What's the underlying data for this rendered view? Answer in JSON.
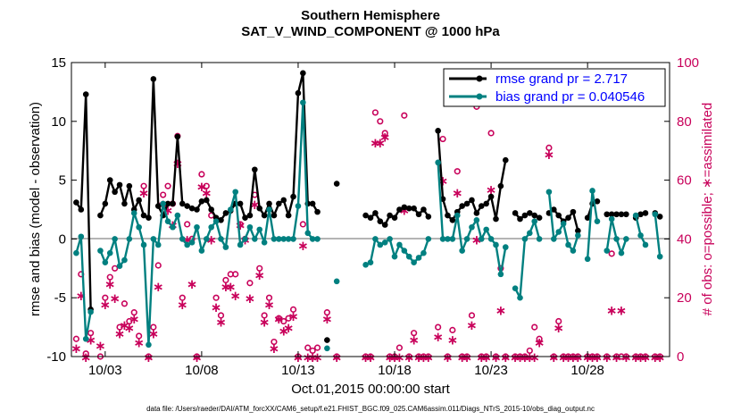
{
  "chart_data": {
    "type": "line",
    "title": "Southern Hemisphere",
    "subtitle": "SAT_V_WIND_COMPONENT @ 1000 hPa",
    "xlabel": "Oct.01,2015 00:00:00 start",
    "ylabel": "rmse and bias (model - observation)",
    "y2label": "# of obs: o=possible; ∗=assimilated",
    "x_tick_labels": [
      "10/03",
      "10/08",
      "10/13",
      "10/18",
      "10/23",
      "10/28"
    ],
    "x_tick_values": [
      3,
      8,
      13,
      18,
      23,
      28
    ],
    "xlim": [
      1.25,
      32.25
    ],
    "ylim": [
      -10,
      15
    ],
    "y_ticks": [
      -10,
      -5,
      0,
      5,
      10,
      15
    ],
    "y2lim": [
      0,
      100
    ],
    "y2_ticks": [
      0,
      20,
      40,
      60,
      80,
      100
    ],
    "grid": false,
    "legend_position": "top-right",
    "colors": {
      "rmse": "#000000",
      "bias": "#008080",
      "counts": "#c8005a",
      "zero_line": "#b4b4b4",
      "legend_text": "#0000ff"
    },
    "series": [
      {
        "name": "rmse grand pr = 2.717",
        "style": "black line with dots",
        "x": [
          1.5,
          1.75,
          2.0,
          2.25,
          2.75,
          3.0,
          3.25,
          3.5,
          3.75,
          4.0,
          4.25,
          4.5,
          4.75,
          5.0,
          5.25,
          5.5,
          5.75,
          6.0,
          6.25,
          6.5,
          6.75,
          7.0,
          7.25,
          7.5,
          7.75,
          8.0,
          8.25,
          8.5,
          8.75,
          9.0,
          9.25,
          9.5,
          9.75,
          10.0,
          10.25,
          10.5,
          10.75,
          11.0,
          11.25,
          11.5,
          11.75,
          12.0,
          12.25,
          12.5,
          12.75,
          13.0,
          13.25,
          13.5,
          13.75,
          14.0,
          14.5,
          15.0,
          16.5,
          16.75,
          17.0,
          17.25,
          17.5,
          17.75,
          18.0,
          18.25,
          18.5,
          18.75,
          19.0,
          19.25,
          19.5,
          19.75,
          20.25,
          20.5,
          20.75,
          21.0,
          21.25,
          21.5,
          21.75,
          22.0,
          22.25,
          22.5,
          22.75,
          23.0,
          23.25,
          23.5,
          23.75,
          24.25,
          24.5,
          24.75,
          25.0,
          25.25,
          25.5,
          26.0,
          26.25,
          26.5,
          26.75,
          27.0,
          27.25,
          27.5,
          28.0,
          28.25,
          28.5,
          29.0,
          29.25,
          29.5,
          29.75,
          30.0,
          30.5,
          30.75,
          31.0,
          31.5,
          31.75
        ],
        "values": [
          3.1,
          2.5,
          12.3,
          -6.0,
          2.0,
          3.0,
          5.0,
          4.0,
          4.6,
          3.0,
          4.5,
          2.5,
          3.3,
          2.0,
          1.8,
          13.6,
          2.8,
          2.0,
          3.0,
          3.0,
          8.7,
          3.0,
          2.8,
          2.6,
          2.5,
          3.2,
          3.3,
          2.5,
          1.8,
          1.6,
          2.2,
          2.4,
          3.0,
          3.0,
          1.8,
          2.0,
          5.9,
          2.6,
          2.0,
          3.0,
          2.0,
          3.0,
          3.3,
          2.0,
          3.6,
          12.4,
          14.1,
          3.0,
          3.0,
          2.3,
          -8.6,
          4.7,
          2.0,
          1.8,
          2.2,
          1.5,
          1.2,
          2.0,
          1.8,
          2.5,
          2.7,
          2.6,
          2.6,
          2.1,
          2.5,
          1.9,
          9.2,
          3.4,
          2.0,
          1.6,
          2.3,
          2.8,
          3.0,
          3.3,
          2.2,
          2.8,
          3.0,
          3.6,
          1.7,
          4.5,
          6.7,
          2.2,
          1.7,
          2.0,
          2.2,
          2.0,
          1.8,
          2.2,
          2.5,
          2.0,
          1.5,
          1.8,
          2.3,
          0.7,
          1.8,
          3.0,
          3.2,
          2.1,
          2.1,
          2.1,
          2.1,
          2.1,
          1.8,
          2.1,
          2.2,
          2.2,
          1.9
        ]
      },
      {
        "name": "bias grand pr = 0.040546",
        "style": "teal line with dots",
        "x": [
          1.5,
          1.75,
          2.0,
          2.25,
          2.75,
          3.0,
          3.25,
          3.5,
          3.75,
          4.0,
          4.25,
          4.5,
          4.75,
          5.0,
          5.25,
          5.5,
          5.75,
          6.0,
          6.25,
          6.5,
          6.75,
          7.0,
          7.25,
          7.5,
          7.75,
          8.0,
          8.25,
          8.5,
          8.75,
          9.0,
          9.25,
          9.5,
          9.75,
          10.0,
          10.25,
          10.5,
          10.75,
          11.0,
          11.25,
          11.5,
          11.75,
          12.0,
          12.25,
          12.5,
          12.75,
          13.0,
          13.25,
          13.5,
          13.75,
          14.0,
          14.5,
          15.0,
          16.5,
          16.75,
          17.0,
          17.25,
          17.5,
          17.75,
          18.0,
          18.25,
          18.5,
          18.75,
          19.0,
          19.25,
          19.5,
          19.75,
          20.25,
          20.5,
          20.75,
          21.0,
          21.25,
          21.5,
          21.75,
          22.0,
          22.25,
          22.5,
          22.75,
          23.0,
          23.25,
          23.5,
          23.75,
          24.25,
          24.5,
          24.75,
          25.0,
          25.25,
          25.5,
          26.0,
          26.25,
          26.5,
          26.75,
          27.0,
          27.25,
          27.5,
          28.0,
          28.25,
          28.5,
          29.0,
          29.25,
          29.5,
          29.75,
          30.0,
          30.5,
          30.75,
          31.0,
          31.5,
          31.75
        ],
        "values": [
          -1.2,
          0.2,
          -8.5,
          -6.2,
          -1.0,
          -2.0,
          -1.2,
          0.0,
          -2.3,
          -1.8,
          0.0,
          2.2,
          1.0,
          -0.5,
          -9.0,
          0.0,
          -0.5,
          3.0,
          1.5,
          1.0,
          2.0,
          0.0,
          -0.5,
          -0.3,
          1.0,
          -1.0,
          0.0,
          1.0,
          1.5,
          0.0,
          -0.7,
          2.5,
          4.0,
          -0.5,
          0.0,
          1.0,
          0.0,
          0.8,
          -0.3,
          2.5,
          0.0,
          0.0,
          0.0,
          0.0,
          0.0,
          2.8,
          11.6,
          0.5,
          0.0,
          0.0,
          -9.3,
          -3.6,
          -2.2,
          -2.0,
          0.0,
          -0.5,
          -0.3,
          0.0,
          -1.5,
          -0.5,
          -1.0,
          -1.5,
          -2.0,
          -1.6,
          -1.2,
          0.0,
          6.5,
          0.0,
          0.0,
          0.0,
          2.0,
          -1.0,
          0.0,
          1.0,
          1.6,
          0.0,
          0.8,
          0.0,
          -0.5,
          -3.0,
          -0.7,
          -4.2,
          -5.0,
          0.0,
          0.5,
          1.5,
          0.0,
          4.0,
          0.0,
          0.6,
          1.3,
          -0.5,
          -1.0,
          0.3,
          -1.7,
          4.1,
          1.5,
          -1.0,
          1.7,
          0.0,
          -1.2,
          0.0,
          2.0,
          0.3,
          -0.5,
          2.1,
          -1.5
        ]
      }
    ],
    "obs_possible": {
      "symbol": "o",
      "x": [
        1.5,
        1.75,
        2.0,
        2.25,
        2.75,
        3.0,
        3.25,
        3.5,
        3.75,
        4.0,
        4.25,
        4.5,
        4.75,
        5.0,
        5.25,
        5.5,
        5.75,
        6.0,
        6.25,
        6.5,
        6.75,
        7.0,
        7.25,
        7.5,
        7.75,
        8.0,
        8.25,
        8.5,
        8.75,
        9.0,
        9.25,
        9.5,
        9.75,
        10.0,
        10.25,
        10.5,
        10.75,
        11.0,
        11.25,
        11.5,
        11.75,
        12.0,
        12.25,
        12.5,
        12.75,
        13.0,
        13.25,
        13.5,
        13.75,
        14.0,
        14.5,
        15.0,
        16.5,
        16.75,
        17.0,
        17.25,
        17.5,
        17.75,
        18.0,
        18.25,
        18.5,
        18.75,
        19.0,
        19.25,
        19.5,
        19.75,
        20.25,
        20.5,
        20.75,
        21.0,
        21.25,
        21.5,
        21.75,
        22.0,
        22.25,
        22.5,
        22.75,
        23.0,
        23.25,
        23.5,
        23.75,
        24.25,
        24.5,
        24.75,
        25.0,
        25.25,
        25.5,
        26.0,
        26.25,
        26.5,
        26.75,
        27.0,
        27.25,
        27.5,
        28.0,
        28.25,
        28.5,
        29.0,
        29.25,
        29.5,
        29.75,
        30.0,
        30.5,
        30.75,
        31.0,
        31.5,
        31.75
      ],
      "values": [
        6,
        28,
        1,
        8,
        0,
        20,
        27,
        30,
        10,
        18,
        12,
        15,
        7,
        58,
        0,
        10,
        31,
        55,
        58,
        52,
        75,
        20,
        45,
        40,
        0,
        62,
        58,
        48,
        20,
        14,
        26,
        28,
        28,
        45,
        40,
        25,
        55,
        30,
        14,
        20,
        5,
        13,
        12,
        13,
        16,
        0,
        45,
        3,
        2,
        3,
        15,
        0,
        0,
        0,
        83,
        80,
        76,
        0,
        0,
        3,
        82,
        0,
        8,
        0,
        0,
        0,
        10,
        74,
        0,
        9,
        63,
        0,
        0,
        14,
        85,
        0,
        0,
        76,
        0,
        30,
        0,
        0,
        0,
        0,
        2,
        10,
        6,
        71,
        0,
        12,
        0,
        0,
        0,
        0,
        0,
        0,
        0,
        0,
        35,
        0,
        0,
        0,
        0,
        0,
        0,
        0,
        0
      ]
    },
    "obs_assimilated": {
      "symbol": "∗",
      "x": [
        1.5,
        1.75,
        2.0,
        2.25,
        2.75,
        3.0,
        3.25,
        3.5,
        3.75,
        4.0,
        4.25,
        4.5,
        4.75,
        5.0,
        5.25,
        5.5,
        5.75,
        6.0,
        6.25,
        6.5,
        6.75,
        7.0,
        7.25,
        7.5,
        7.75,
        8.0,
        8.25,
        8.5,
        8.75,
        9.0,
        9.25,
        9.5,
        9.75,
        10.0,
        10.25,
        10.5,
        10.75,
        11.0,
        11.25,
        11.5,
        11.75,
        12.0,
        12.25,
        12.5,
        12.75,
        13.0,
        13.25,
        13.5,
        13.75,
        14.0,
        14.5,
        15.0,
        16.5,
        16.75,
        17.0,
        17.25,
        17.5,
        17.75,
        18.0,
        18.25,
        18.5,
        18.75,
        19.0,
        19.25,
        19.5,
        19.75,
        20.25,
        20.5,
        20.75,
        21.0,
        21.25,
        21.5,
        21.75,
        22.0,
        22.25,
        22.5,
        22.75,
        23.0,
        23.25,
        23.5,
        23.75,
        24.25,
        24.5,
        24.75,
        25.0,
        25.25,
        25.5,
        26.0,
        26.25,
        26.5,
        26.75,
        27.0,
        27.25,
        27.5,
        28.0,
        28.25,
        28.5,
        29.0,
        29.25,
        29.5,
        29.75,
        30.0,
        30.5,
        30.75,
        31.0,
        31.5,
        31.75
      ],
      "values": [
        3,
        21,
        0,
        6,
        4,
        18,
        25,
        20,
        8,
        11,
        10,
        13,
        5,
        56,
        0,
        8,
        24,
        52,
        50,
        45,
        66,
        18,
        40,
        25,
        0,
        58,
        56,
        40,
        17,
        12,
        24,
        24,
        21,
        45,
        40,
        20,
        52,
        28,
        12,
        18,
        3,
        13,
        9,
        10,
        14,
        0,
        38,
        0,
        0,
        0,
        13,
        0,
        0,
        0,
        73,
        73,
        75,
        0,
        0,
        0,
        50,
        0,
        6,
        0,
        0,
        0,
        7,
        60,
        0,
        6,
        56,
        0,
        0,
        11,
        40,
        0,
        0,
        57,
        0,
        16,
        0,
        0,
        0,
        0,
        0,
        0,
        5,
        69,
        0,
        10,
        0,
        0,
        0,
        0,
        0,
        0,
        0,
        0,
        16,
        0,
        16,
        0,
        0,
        0,
        0,
        0,
        0
      ]
    },
    "footer_note": "data file: /Users/raeder/DAI/ATM_forcXX/CAM6_setup/f.e21.FHIST_BGC.f09_025.CAM6assim.011/Diags_NTrS_2015-10/obs_diag_output.nc"
  }
}
